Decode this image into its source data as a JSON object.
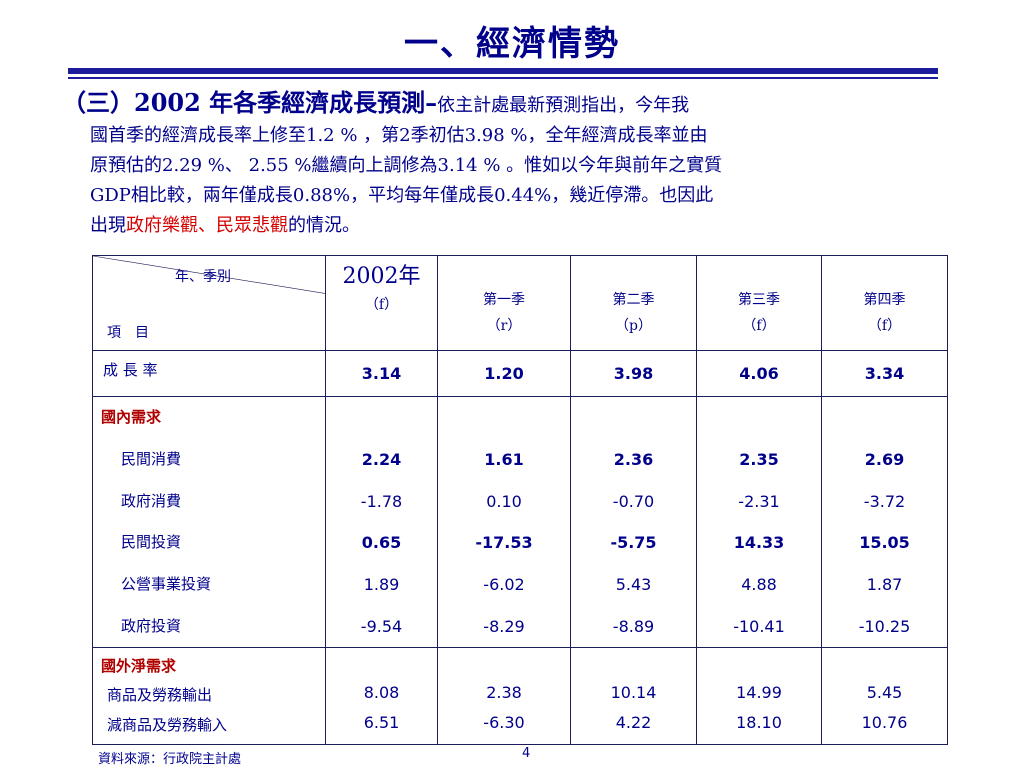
{
  "title": "一、經濟情勢",
  "paragraph": {
    "heading": "（三）2002 年各季經濟成長預測–",
    "line1_rest": "依主計處最新預測指出，今年我",
    "line2": "國首季的經濟成長率上修至1.2 % ，第2季初估3.98 %，全年經濟成長率並由",
    "line3": "原預估的2.29 %、 2.55 %繼續向上調修為3.14 % 。惟如以今年與前年之實質",
    "line4": "GDP相比較，兩年僅成長0.88%，平均每年僅成長0.44%，幾近停滯。也因此",
    "line5_pre": "出現",
    "line5_red": "政府樂觀、民眾悲觀",
    "line5_post": "的情況。"
  },
  "table": {
    "corner_top": "年、季別",
    "corner_bottom": "項　目",
    "columns": [
      {
        "label": "2002年",
        "sub": "（f）"
      },
      {
        "label": "第一季",
        "sub": "（r）"
      },
      {
        "label": "第二季",
        "sub": "（p）"
      },
      {
        "label": "第三季",
        "sub": "（f）"
      },
      {
        "label": "第四季",
        "sub": "（f）"
      }
    ],
    "growth": {
      "label": "成 長 率",
      "values": [
        "3.14",
        "1.20",
        "3.98",
        "4.06",
        "3.34"
      ]
    },
    "domestic": {
      "group": "國內需求",
      "rows": [
        {
          "label": "民間消費",
          "values": [
            "2.24",
            "1.61",
            "2.36",
            "2.35",
            "2.69"
          ],
          "bold": true
        },
        {
          "label": "政府消費",
          "values": [
            "-1.78",
            "0.10",
            "-0.70",
            "-2.31",
            "-3.72"
          ],
          "bold": false
        },
        {
          "label": "民間投資",
          "values": [
            "0.65",
            "-17.53",
            "-5.75",
            "14.33",
            "15.05"
          ],
          "bold": true
        },
        {
          "label": "公營事業投資",
          "values": [
            "1.89",
            "-6.02",
            "5.43",
            "4.88",
            "1.87"
          ],
          "bold": false
        },
        {
          "label": "政府投資",
          "values": [
            "-9.54",
            "-8.29",
            "-8.89",
            "-10.41",
            "-10.25"
          ],
          "bold": false
        }
      ]
    },
    "foreign": {
      "group": "國外淨需求",
      "rows": [
        {
          "label": "商品及勞務輸出",
          "values": [
            "8.08",
            "2.38",
            "10.14",
            "14.99",
            "5.45"
          ]
        },
        {
          "label": "減商品及勞務輸入",
          "values": [
            "6.51",
            "-6.30",
            "4.22",
            "18.10",
            "10.76"
          ]
        }
      ]
    }
  },
  "footer": {
    "source": "資料來源：行政院主計處",
    "page": "4"
  },
  "colors": {
    "title": "#00008b",
    "rule": "#1c1c9c",
    "highlight": "#d40000",
    "group": "#b00000"
  }
}
